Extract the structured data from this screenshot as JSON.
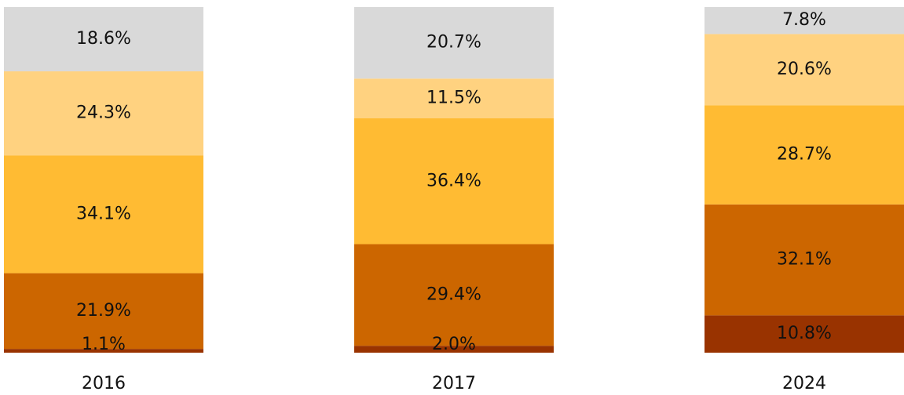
{
  "chart_data": {
    "type": "stacked_bar",
    "categories": [
      "2016",
      "2017",
      "2024"
    ],
    "ylim": [
      0,
      100
    ],
    "series": [
      {
        "color": "#993300",
        "values": [
          1.1,
          2.0,
          10.8
        ],
        "value_labels": [
          "1.1%",
          "2.0%",
          "10.8%"
        ]
      },
      {
        "color": "#cc6600",
        "values": [
          21.9,
          29.4,
          32.1
        ],
        "value_labels": [
          "21.9%",
          "29.4%",
          "32.1%"
        ]
      },
      {
        "color": "#ffbb33",
        "values": [
          34.1,
          36.4,
          28.7
        ],
        "value_labels": [
          "34.1%",
          "36.4%",
          "28.7%"
        ]
      },
      {
        "color": "#ffd280",
        "values": [
          24.3,
          11.5,
          20.6
        ],
        "value_labels": [
          "24.3%",
          "11.5%",
          "20.6%"
        ]
      },
      {
        "color": "#d9d9d9",
        "values": [
          18.6,
          20.7,
          7.8
        ],
        "value_labels": [
          "18.6%",
          "20.7%",
          "7.8%"
        ]
      }
    ]
  }
}
